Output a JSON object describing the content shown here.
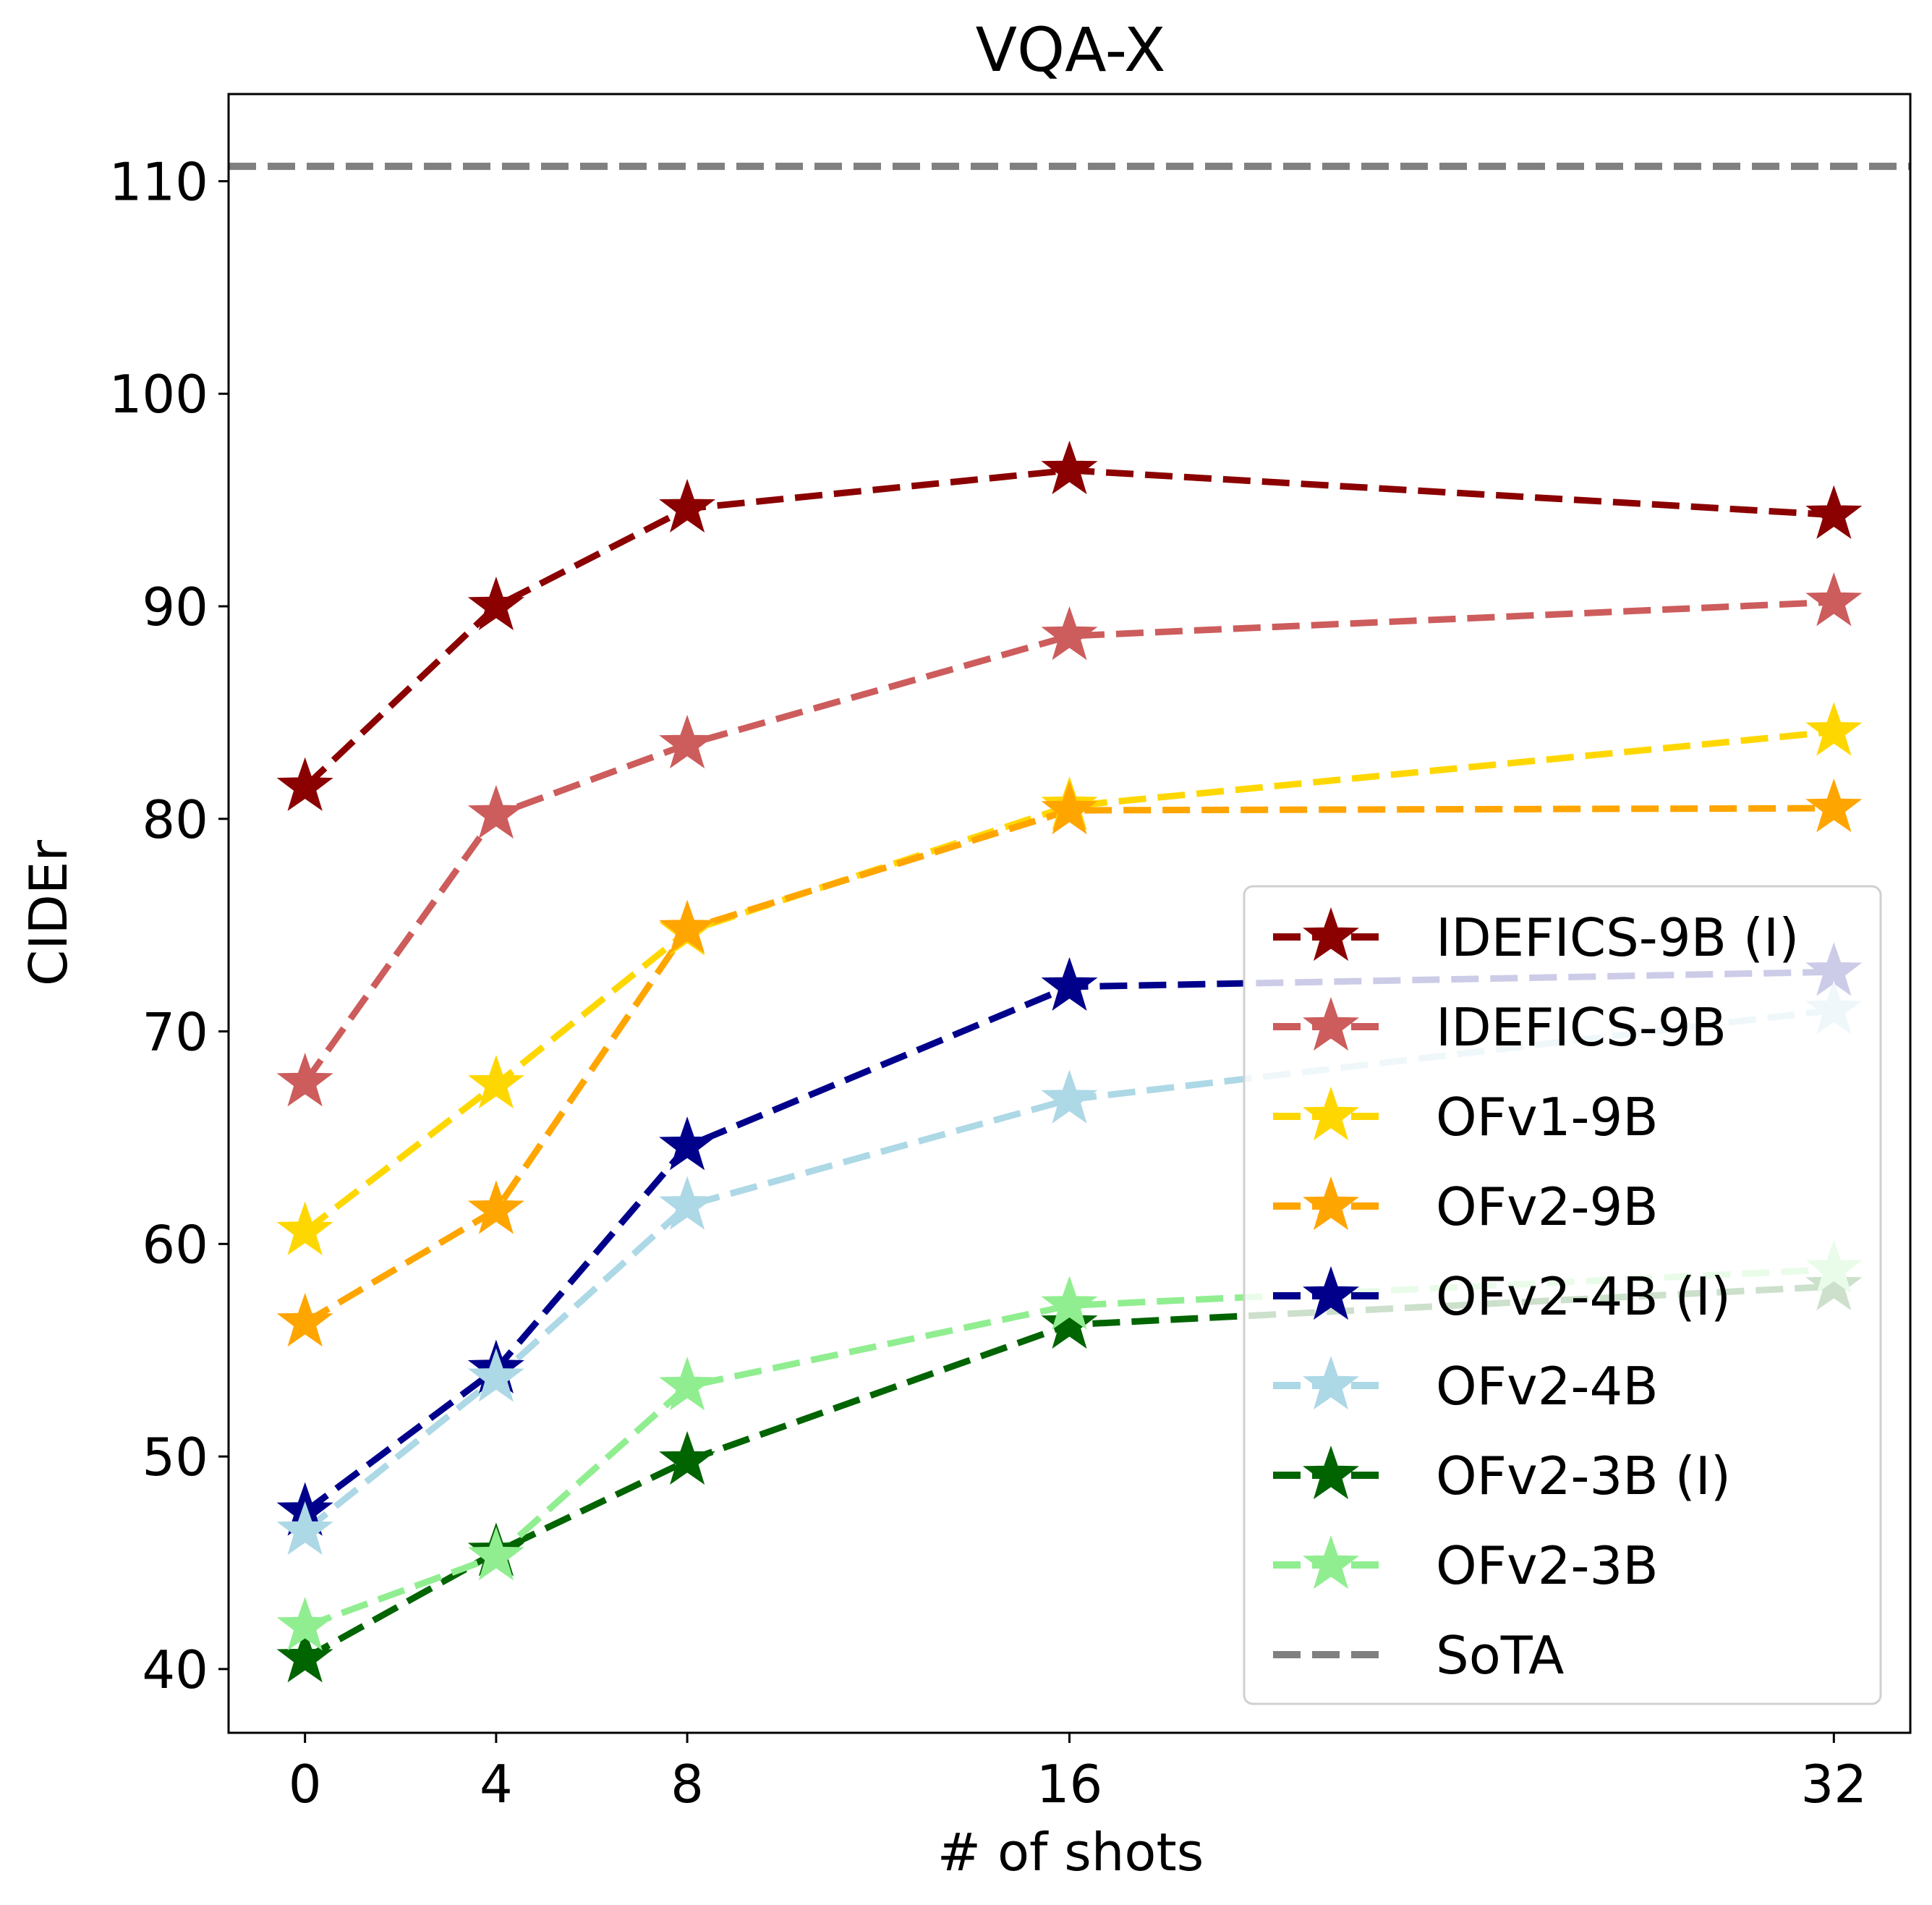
{
  "chart_data": {
    "type": "line",
    "title": "VQA-X",
    "xlabel": "# of shots",
    "ylabel": "CIDEr",
    "x": [
      0,
      4,
      8,
      16,
      32
    ],
    "xticks": [
      "0",
      "4",
      "8",
      "16",
      "32"
    ],
    "yticks": [
      "40",
      "50",
      "60",
      "70",
      "80",
      "90",
      "100",
      "110"
    ],
    "ytick_values": [
      40,
      50,
      60,
      70,
      80,
      90,
      100,
      110
    ],
    "xlim": [
      -1.6,
      33.6
    ],
    "ylim": [
      37,
      114.1
    ],
    "grid": false,
    "legend_position": "lower right",
    "series": [
      {
        "name": "IDEFICS-9B (I)",
        "color": "#8B0000",
        "marker": "star-icon",
        "values": [
          81.5,
          90.0,
          94.6,
          96.4,
          94.3
        ]
      },
      {
        "name": "IDEFICS-9B",
        "color": "#CD5C5C",
        "marker": "star-icon",
        "values": [
          67.6,
          80.2,
          83.5,
          88.6,
          90.2
        ]
      },
      {
        "name": "OFv1-9B",
        "color": "#FFD700",
        "marker": "star-icon",
        "values": [
          60.6,
          67.5,
          74.7,
          80.6,
          84.1
        ]
      },
      {
        "name": "OFv2-9B",
        "color": "#FFA500",
        "marker": "star-icon",
        "values": [
          56.3,
          61.6,
          74.8,
          80.4,
          80.5
        ]
      },
      {
        "name": "OFv2-4B (I)",
        "color": "#00008B",
        "marker": "star-icon",
        "values": [
          47.4,
          54.1,
          64.6,
          72.1,
          72.8
        ]
      },
      {
        "name": "OFv2-4B",
        "color": "#ADD8E6",
        "marker": "star-icon",
        "values": [
          46.5,
          53.7,
          61.8,
          66.8,
          71.0
        ]
      },
      {
        "name": "OFv2-3B (I)",
        "color": "#006400",
        "marker": "star-icon",
        "values": [
          40.5,
          45.5,
          49.8,
          56.2,
          58.0
        ]
      },
      {
        "name": "OFv2-3B",
        "color": "#90EE90",
        "marker": "star-icon",
        "values": [
          42.0,
          45.3,
          53.3,
          57.1,
          58.8
        ]
      }
    ],
    "reference_lines": [
      {
        "name": "SoTA",
        "color": "#808080",
        "value": 110.7
      }
    ]
  }
}
